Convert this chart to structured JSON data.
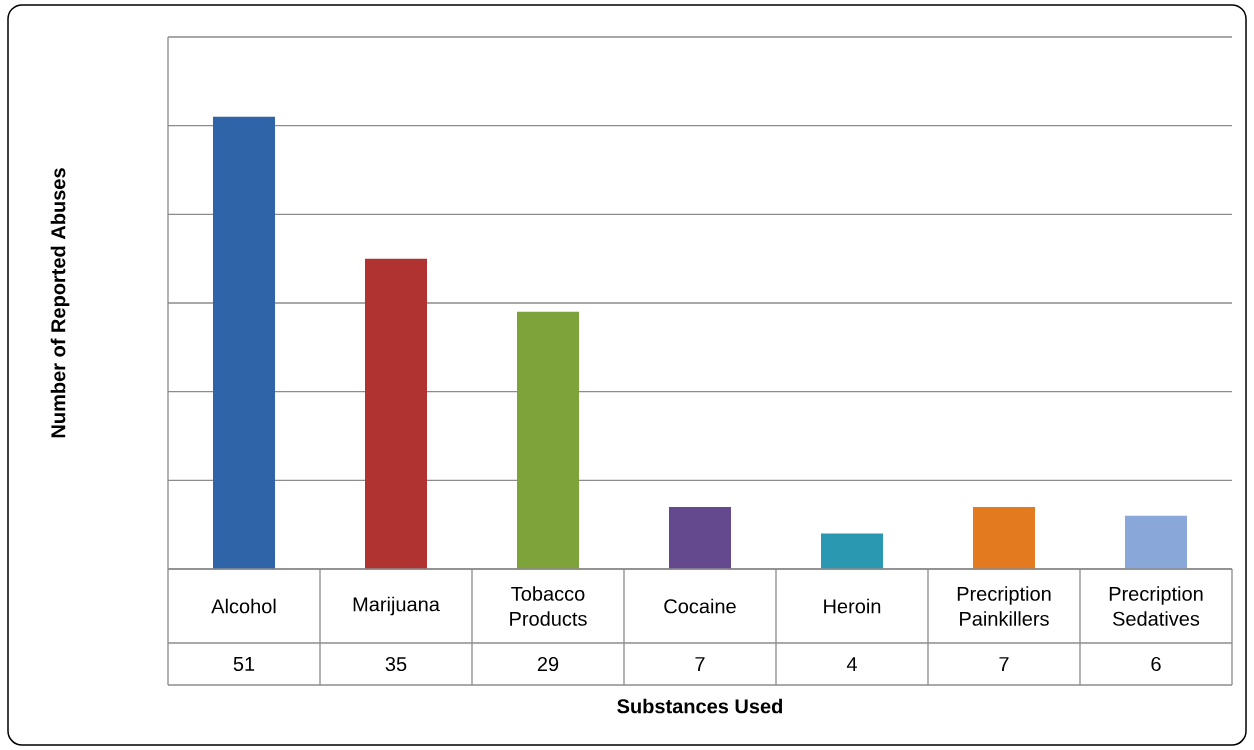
{
  "chart_data": {
    "type": "bar",
    "xlabel": "Substances Used",
    "ylabel": "Number of Reported Abuses",
    "categories": [
      "Alcohol",
      "Marijuana",
      "Tobacco Products",
      "Cocaine",
      "Heroin",
      "Precription Painkillers",
      "Precription Sedatives"
    ],
    "values": [
      51,
      35,
      29,
      7,
      4,
      7,
      6
    ],
    "colors": [
      "#2f65a8",
      "#b03331",
      "#7fa33b",
      "#64498f",
      "#2a98b1",
      "#e47a1f",
      "#89a7d8"
    ],
    "ylim": [
      0,
      60
    ],
    "yticks": [
      {
        "value": 0,
        "label": null
      },
      {
        "value": 10,
        "label": null
      },
      {
        "value": 20,
        "label": null
      },
      {
        "value": 30,
        "label": null
      },
      {
        "value": 40,
        "label": null
      },
      {
        "value": 50,
        "label": null
      },
      {
        "value": 60,
        "label": null
      }
    ],
    "grid": "y",
    "tick_labels": "x",
    "data_labels": true
  }
}
